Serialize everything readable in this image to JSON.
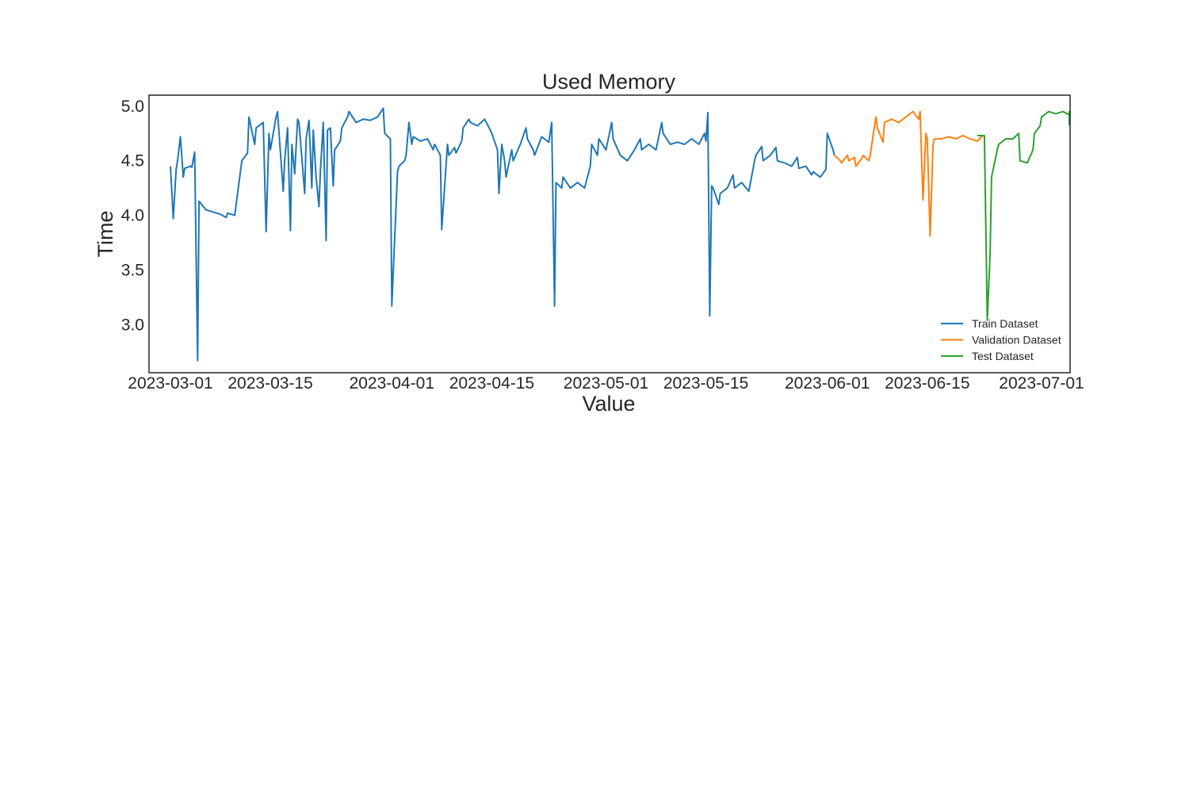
{
  "chart_data": {
    "type": "line",
    "title": "Used Memory",
    "xlabel": "Value",
    "ylabel": "Time",
    "x_axis_type": "date",
    "xlim": [
      "2023-02-26",
      "2023-07-05"
    ],
    "ylim": [
      2.56,
      5.1
    ],
    "x_ticks": [
      "2023-03-01",
      "2023-03-15",
      "2023-04-01",
      "2023-04-15",
      "2023-05-01",
      "2023-05-15",
      "2023-06-01",
      "2023-06-15",
      "2023-07-01"
    ],
    "y_ticks": [
      3.0,
      3.5,
      4.0,
      4.5,
      5.0
    ],
    "y_tick_labels": [
      "3.0",
      "3.5",
      "4.0",
      "4.5",
      "5.0"
    ],
    "grid": false,
    "legend_position": "lower-right",
    "series": [
      {
        "name": "Train Dataset",
        "color": "#1f77b4",
        "points": [
          [
            "2023-03-01",
            4.45
          ],
          [
            "2023-03-01",
            3.97
          ],
          [
            "2023-03-01",
            4.42
          ],
          [
            "2023-03-02",
            4.5
          ],
          [
            "2023-03-02",
            4.72
          ],
          [
            "2023-03-02",
            4.35
          ],
          [
            "2023-03-03",
            4.43
          ],
          [
            "2023-03-03",
            4.45
          ],
          [
            "2023-03-04",
            4.44
          ],
          [
            "2023-03-04",
            4.58
          ],
          [
            "2023-03-04",
            2.67
          ],
          [
            "2023-03-05",
            4.13
          ],
          [
            "2023-03-06",
            4.05
          ],
          [
            "2023-03-07",
            4.03
          ],
          [
            "2023-03-08",
            4.01
          ],
          [
            "2023-03-08",
            3.98
          ],
          [
            "2023-03-09",
            4.02
          ],
          [
            "2023-03-10",
            4.0
          ],
          [
            "2023-03-11",
            4.5
          ],
          [
            "2023-03-11",
            4.57
          ],
          [
            "2023-03-12",
            4.9
          ],
          [
            "2023-03-12",
            4.65
          ],
          [
            "2023-03-13",
            4.8
          ],
          [
            "2023-03-14",
            4.85
          ],
          [
            "2023-03-14",
            3.85
          ],
          [
            "2023-03-14",
            4.75
          ],
          [
            "2023-03-15",
            4.6
          ],
          [
            "2023-03-15",
            4.9
          ],
          [
            "2023-03-16",
            4.95
          ],
          [
            "2023-03-16",
            4.22
          ],
          [
            "2023-03-17",
            4.5
          ],
          [
            "2023-03-17",
            4.8
          ],
          [
            "2023-03-17",
            3.86
          ],
          [
            "2023-03-18",
            4.65
          ],
          [
            "2023-03-18",
            4.38
          ],
          [
            "2023-03-18",
            4.88
          ],
          [
            "2023-03-19",
            4.85
          ],
          [
            "2023-03-19",
            4.2
          ],
          [
            "2023-03-20",
            4.7
          ],
          [
            "2023-03-20",
            4.87
          ],
          [
            "2023-03-20",
            4.25
          ],
          [
            "2023-03-21",
            4.78
          ],
          [
            "2023-03-21",
            4.35
          ],
          [
            "2023-03-21",
            4.08
          ],
          [
            "2023-03-22",
            4.4
          ],
          [
            "2023-03-22",
            4.85
          ],
          [
            "2023-03-22",
            3.77
          ],
          [
            "2023-03-23",
            4.78
          ],
          [
            "2023-03-23",
            4.8
          ],
          [
            "2023-03-23",
            4.27
          ],
          [
            "2023-03-24",
            4.6
          ],
          [
            "2023-03-24",
            4.68
          ],
          [
            "2023-03-25",
            4.8
          ],
          [
            "2023-03-25",
            4.9
          ],
          [
            "2023-03-26",
            4.95
          ],
          [
            "2023-03-27",
            4.85
          ],
          [
            "2023-03-28",
            4.88
          ],
          [
            "2023-03-29",
            4.87
          ],
          [
            "2023-03-30",
            4.9
          ],
          [
            "2023-03-30",
            4.98
          ],
          [
            "2023-03-31",
            4.75
          ],
          [
            "2023-03-31",
            4.7
          ],
          [
            "2023-04-01",
            3.17
          ],
          [
            "2023-04-01",
            4.4
          ],
          [
            "2023-04-02",
            4.45
          ],
          [
            "2023-04-02",
            4.5
          ],
          [
            "2023-04-03",
            4.55
          ],
          [
            "2023-04-03",
            4.85
          ],
          [
            "2023-04-03",
            4.65
          ],
          [
            "2023-04-04",
            4.72
          ],
          [
            "2023-04-05",
            4.68
          ],
          [
            "2023-04-06",
            4.7
          ],
          [
            "2023-04-06",
            4.6
          ],
          [
            "2023-04-07",
            4.65
          ],
          [
            "2023-04-07",
            4.55
          ],
          [
            "2023-04-08",
            3.87
          ],
          [
            "2023-04-08",
            4.65
          ],
          [
            "2023-04-09",
            4.55
          ],
          [
            "2023-04-09",
            4.62
          ],
          [
            "2023-04-10",
            4.57
          ],
          [
            "2023-04-10",
            4.68
          ],
          [
            "2023-04-11",
            4.8
          ],
          [
            "2023-04-11",
            4.88
          ],
          [
            "2023-04-12",
            4.85
          ],
          [
            "2023-04-13",
            4.82
          ],
          [
            "2023-04-14",
            4.88
          ],
          [
            "2023-04-14",
            4.78
          ],
          [
            "2023-04-15",
            4.75
          ],
          [
            "2023-04-15",
            4.6
          ],
          [
            "2023-04-16",
            4.2
          ],
          [
            "2023-04-16",
            4.65
          ],
          [
            "2023-04-16",
            4.5
          ],
          [
            "2023-04-17",
            4.35
          ],
          [
            "2023-04-17",
            4.6
          ],
          [
            "2023-04-18",
            4.5
          ],
          [
            "2023-04-19",
            4.65
          ],
          [
            "2023-04-19",
            4.8
          ],
          [
            "2023-04-20",
            4.7
          ],
          [
            "2023-04-20",
            4.6
          ],
          [
            "2023-04-21",
            4.55
          ],
          [
            "2023-04-22",
            4.72
          ],
          [
            "2023-04-23",
            4.67
          ],
          [
            "2023-04-23",
            4.85
          ],
          [
            "2023-04-23",
            3.17
          ],
          [
            "2023-04-24",
            4.3
          ],
          [
            "2023-04-24",
            4.25
          ],
          [
            "2023-04-25",
            4.35
          ],
          [
            "2023-04-26",
            4.25
          ],
          [
            "2023-04-27",
            4.3
          ],
          [
            "2023-04-28",
            4.25
          ],
          [
            "2023-04-28",
            4.45
          ],
          [
            "2023-04-29",
            4.65
          ],
          [
            "2023-04-29",
            4.55
          ],
          [
            "2023-04-30",
            4.7
          ],
          [
            "2023-04-30",
            4.62
          ],
          [
            "2023-05-01",
            4.6
          ],
          [
            "2023-05-01",
            4.85
          ],
          [
            "2023-05-02",
            4.7
          ],
          [
            "2023-05-03",
            4.55
          ],
          [
            "2023-05-04",
            4.5
          ],
          [
            "2023-05-05",
            4.6
          ],
          [
            "2023-05-05",
            4.7
          ],
          [
            "2023-05-06",
            4.6
          ],
          [
            "2023-05-07",
            4.65
          ],
          [
            "2023-05-08",
            4.6
          ],
          [
            "2023-05-08",
            4.85
          ],
          [
            "2023-05-09",
            4.75
          ],
          [
            "2023-05-10",
            4.65
          ],
          [
            "2023-05-11",
            4.67
          ],
          [
            "2023-05-12",
            4.65
          ],
          [
            "2023-05-13",
            4.7
          ],
          [
            "2023-05-14",
            4.65
          ],
          [
            "2023-05-14",
            4.75
          ],
          [
            "2023-05-15",
            4.68
          ],
          [
            "2023-05-15",
            4.94
          ],
          [
            "2023-05-15",
            3.08
          ],
          [
            "2023-05-15",
            4.27
          ],
          [
            "2023-05-16",
            4.25
          ],
          [
            "2023-05-16",
            4.1
          ],
          [
            "2023-05-17",
            4.2
          ],
          [
            "2023-05-18",
            4.25
          ],
          [
            "2023-05-18",
            4.37
          ],
          [
            "2023-05-19",
            4.25
          ],
          [
            "2023-05-20",
            4.3
          ],
          [
            "2023-05-21",
            4.22
          ],
          [
            "2023-05-21",
            4.5
          ],
          [
            "2023-05-22",
            4.55
          ],
          [
            "2023-05-22",
            4.63
          ],
          [
            "2023-05-23",
            4.5
          ],
          [
            "2023-05-24",
            4.55
          ],
          [
            "2023-05-24",
            4.62
          ],
          [
            "2023-05-25",
            4.5
          ],
          [
            "2023-05-26",
            4.48
          ],
          [
            "2023-05-27",
            4.45
          ],
          [
            "2023-05-27",
            4.53
          ],
          [
            "2023-05-28",
            4.43
          ],
          [
            "2023-05-29",
            4.45
          ],
          [
            "2023-05-29",
            4.37
          ],
          [
            "2023-05-30",
            4.4
          ],
          [
            "2023-05-31",
            4.35
          ],
          [
            "2023-05-31",
            4.42
          ],
          [
            "2023-06-01",
            4.75
          ],
          [
            "2023-06-01",
            4.6
          ],
          [
            "2023-06-02",
            4.55
          ]
        ]
      },
      {
        "name": "Validation Dataset",
        "color": "#ff7f0e",
        "points": [
          [
            "2023-06-02",
            4.55
          ],
          [
            "2023-06-02",
            4.5
          ],
          [
            "2023-06-03",
            4.48
          ],
          [
            "2023-06-03",
            4.55
          ],
          [
            "2023-06-04",
            4.5
          ],
          [
            "2023-06-04",
            4.53
          ],
          [
            "2023-06-05",
            4.45
          ],
          [
            "2023-06-05",
            4.52
          ],
          [
            "2023-06-06",
            4.55
          ],
          [
            "2023-06-06",
            4.5
          ],
          [
            "2023-06-07",
            4.55
          ],
          [
            "2023-06-07",
            4.9
          ],
          [
            "2023-06-08",
            4.8
          ],
          [
            "2023-06-08",
            4.67
          ],
          [
            "2023-06-09",
            4.85
          ],
          [
            "2023-06-10",
            4.88
          ],
          [
            "2023-06-11",
            4.85
          ],
          [
            "2023-06-12",
            4.9
          ],
          [
            "2023-06-13",
            4.95
          ],
          [
            "2023-06-13",
            4.88
          ],
          [
            "2023-06-14",
            4.95
          ],
          [
            "2023-06-14",
            4.14
          ],
          [
            "2023-06-14",
            4.75
          ],
          [
            "2023-06-15",
            4.7
          ],
          [
            "2023-06-15",
            3.81
          ],
          [
            "2023-06-15",
            4.65
          ],
          [
            "2023-06-16",
            4.7
          ],
          [
            "2023-06-17",
            4.7
          ],
          [
            "2023-06-18",
            4.72
          ],
          [
            "2023-06-19",
            4.7
          ],
          [
            "2023-06-20",
            4.73
          ],
          [
            "2023-06-21",
            4.7
          ],
          [
            "2023-06-22",
            4.68
          ],
          [
            "2023-06-22",
            4.73
          ]
        ]
      },
      {
        "name": "Test Dataset",
        "color": "#2ca02c",
        "points": [
          [
            "2023-06-22",
            4.73
          ],
          [
            "2023-06-23",
            4.73
          ],
          [
            "2023-06-23",
            3.04
          ],
          [
            "2023-06-23",
            3.65
          ],
          [
            "2023-06-24",
            4.35
          ],
          [
            "2023-06-24",
            4.6
          ],
          [
            "2023-06-25",
            4.65
          ],
          [
            "2023-06-26",
            4.7
          ],
          [
            "2023-06-27",
            4.7
          ],
          [
            "2023-06-27",
            4.75
          ],
          [
            "2023-06-28",
            4.5
          ],
          [
            "2023-06-29",
            4.48
          ],
          [
            "2023-06-29",
            4.6
          ],
          [
            "2023-06-30",
            4.75
          ],
          [
            "2023-06-30",
            4.82
          ],
          [
            "2023-07-01",
            4.9
          ],
          [
            "2023-07-02",
            4.95
          ],
          [
            "2023-07-03",
            4.93
          ],
          [
            "2023-07-04",
            4.95
          ],
          [
            "2023-07-05",
            4.92
          ],
          [
            "2023-07-06",
            4.9
          ],
          [
            "2023-07-07",
            4.85
          ],
          [
            "2023-07-08",
            4.85
          ],
          [
            "2023-07-09",
            4.85
          ],
          [
            "2023-07-10",
            4.87
          ],
          [
            "2023-07-11",
            4.83
          ],
          [
            "2023-07-11",
            4.95
          ],
          [
            "2023-07-12",
            4.9
          ]
        ]
      }
    ]
  }
}
